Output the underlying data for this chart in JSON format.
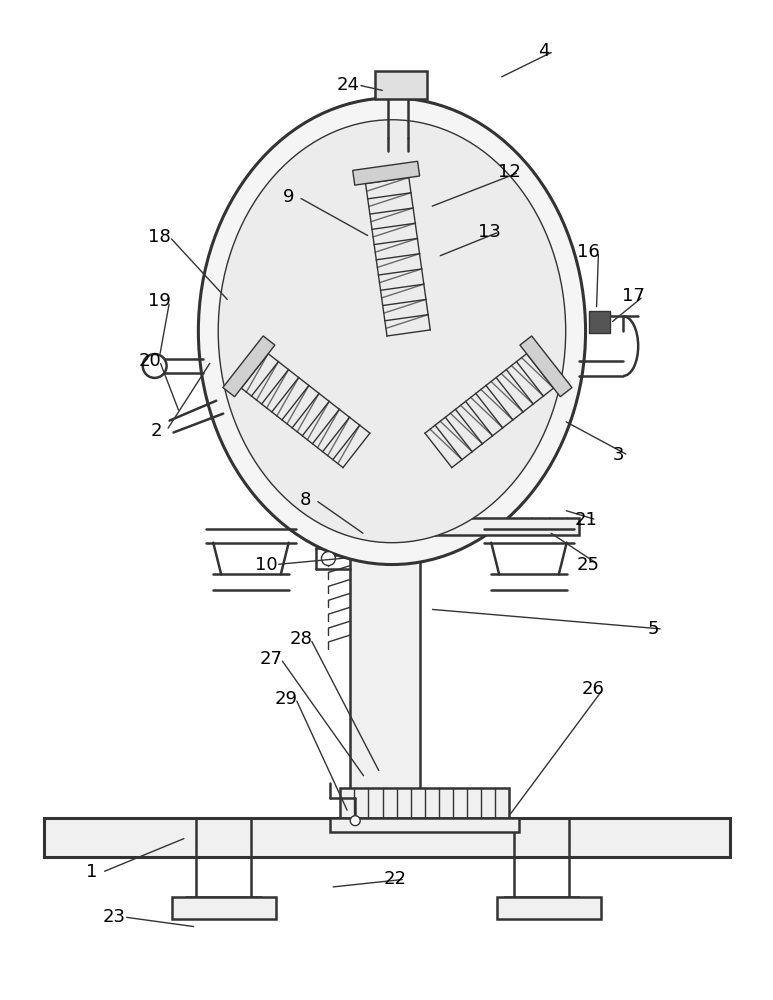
{
  "bg_color": "#ffffff",
  "line_color": "#333333",
  "figsize": [
    7.73,
    10.0
  ],
  "dpi": 100
}
